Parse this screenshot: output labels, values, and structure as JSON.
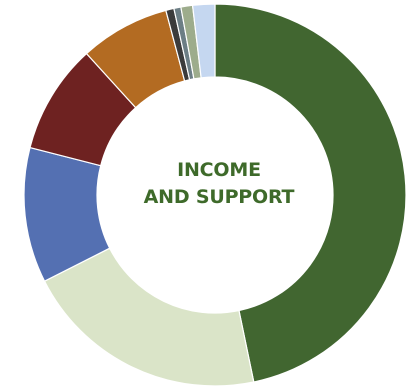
{
  "chart_data": {
    "type": "donut",
    "center_label": [
      "INCOME",
      "AND SUPPORT"
    ],
    "slices": [
      {
        "value": 47.4,
        "color": "#416630"
      },
      {
        "value": 21.1,
        "color": "#dae4c8"
      },
      {
        "value": 11.6,
        "color": "#5470b2"
      },
      {
        "value": 9.4,
        "color": "#6e2221"
      },
      {
        "value": 7.7,
        "color": "#b36b22"
      },
      {
        "value": 0.7,
        "color": "#3b3b3b"
      },
      {
        "value": 0.6,
        "color": "#6c7e85"
      },
      {
        "value": 1.0,
        "color": "#9dac8c"
      },
      {
        "value": 1.9,
        "color": "#c5d7f0"
      }
    ]
  }
}
